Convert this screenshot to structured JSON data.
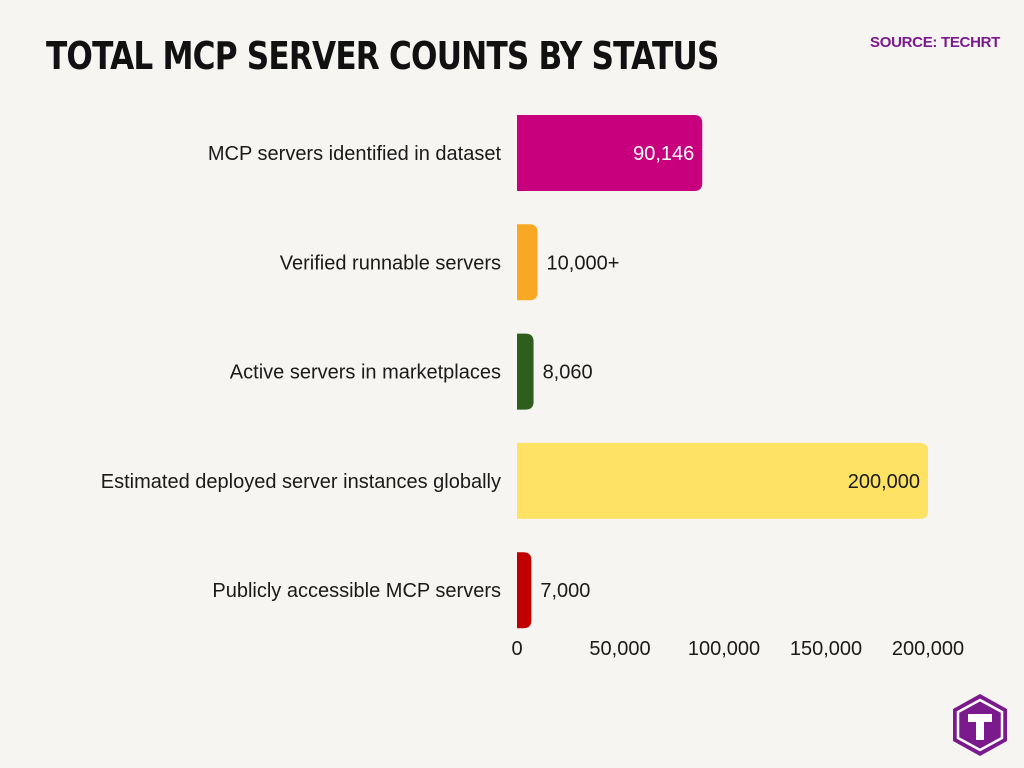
{
  "header": {
    "title": "TOTAL MCP SERVER COUNTS BY STATUS",
    "source": "SOURCE: TECHRT"
  },
  "logo": {
    "icon": "techrt-t-logo-icon",
    "color": "#7a1a8c",
    "letter": "T"
  },
  "chart_data": {
    "type": "bar",
    "orientation": "horizontal",
    "title": "TOTAL MCP SERVER COUNTS BY STATUS",
    "categories": [
      "MCP servers identified in dataset",
      "Verified runnable servers",
      "Active servers in marketplaces",
      "Estimated deployed server instances globally",
      "Publicly accessible MCP servers"
    ],
    "values": [
      90146,
      10000,
      8060,
      200000,
      7000
    ],
    "value_labels": [
      "90,146",
      "10,000+",
      "8,060",
      "200,000",
      "7,000"
    ],
    "colors": [
      "#c8007e",
      "#f9a825",
      "#2e5e1e",
      "#fde264",
      "#c00000"
    ],
    "label_inside": [
      true,
      false,
      false,
      true,
      false
    ],
    "inside_label_colors": [
      "#ffffff",
      "#1a1a1a",
      "#1a1a1a",
      "#1a1a1a",
      "#1a1a1a"
    ],
    "xlim": [
      0,
      200000
    ],
    "xticks": [
      0,
      50000,
      100000,
      150000,
      200000
    ],
    "xtick_labels": [
      "0",
      "50,000",
      "100,000",
      "150,000",
      "200,000"
    ],
    "grid": false,
    "legend": "none"
  }
}
